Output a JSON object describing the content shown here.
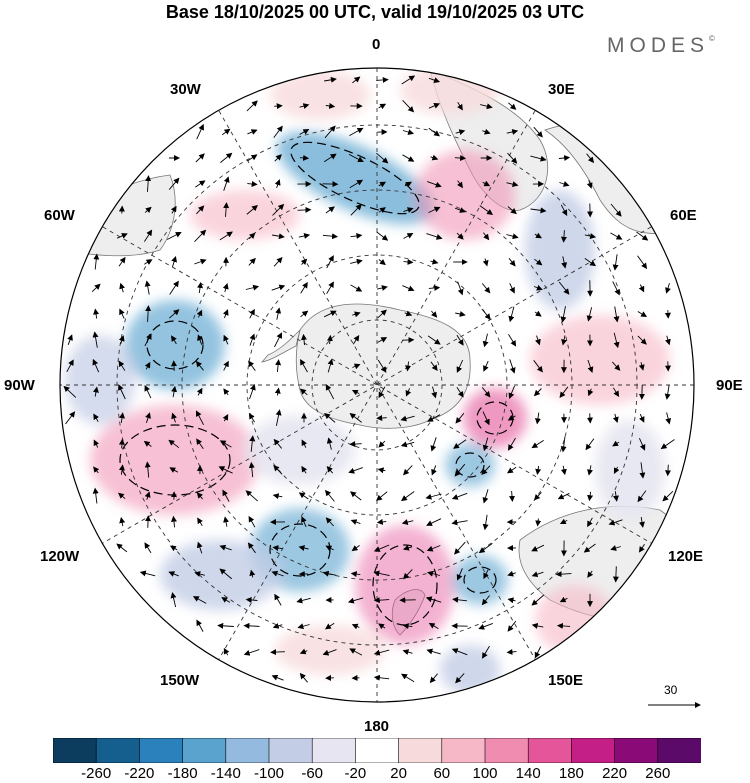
{
  "title": "Base 18/10/2025 00 UTC, valid 19/10/2025 03 UTC",
  "brand": "MODES",
  "brand_mark": "©",
  "lon_labels": {
    "n": "0",
    "ne30": "30E",
    "e60": "60E",
    "e90": "90E",
    "e120": "120E",
    "e150": "150E",
    "s": "180",
    "w150": "150W",
    "w120": "120W",
    "w90": "90W",
    "w60": "60W",
    "w30": "30W"
  },
  "ref_vector": {
    "value": "30"
  },
  "colorbar": {
    "ticks": [
      "-260",
      "-220",
      "-180",
      "-140",
      "-100",
      "-60",
      "-20",
      "20",
      "60",
      "100",
      "140",
      "180",
      "220",
      "260"
    ],
    "colors": [
      "#0c3d5e",
      "#155f8f",
      "#2a81bb",
      "#5aa3cf",
      "#94bbdf",
      "#c3cde6",
      "#e6e5f1",
      "#ffffff",
      "#f7dbdc",
      "#f6b8c6",
      "#f08cb0",
      "#e5559a",
      "#c41f86",
      "#8a0a78",
      "#5c0a6a"
    ]
  },
  "colors": {
    "land": "#eeeeee",
    "coast": "#555555"
  }
}
